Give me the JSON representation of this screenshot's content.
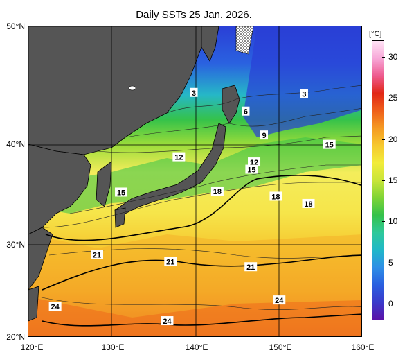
{
  "title": "Daily SSTs 25 Jan. 2026.",
  "unit_label": "[°C]",
  "lat_labels": [
    "50°N",
    "40°N",
    "30°N",
    "20°N"
  ],
  "lon_labels": [
    "120°E",
    "130°E",
    "140°E",
    "150°E",
    "160°E"
  ],
  "colorbar": {
    "ticks": [
      "30",
      "25",
      "20",
      "15",
      "10",
      "5",
      "0"
    ],
    "range": [
      -2,
      32
    ],
    "colors": [
      "#5b12a8",
      "#3a3acb",
      "#2a5fe0",
      "#2e8fe6",
      "#20b8c8",
      "#2ec99a",
      "#35c24a",
      "#7fd436",
      "#c9e53a",
      "#f2ec3a",
      "#f6c82e",
      "#f59a23",
      "#ef5f1a",
      "#e12716",
      "#ee5a8f",
      "#f7a8d8",
      "#ffe4f6"
    ]
  },
  "contour_labels": [
    {
      "text": "3",
      "lon": 139.8,
      "lat": 43.6
    },
    {
      "text": "3",
      "lon": 153.0,
      "lat": 43.5
    },
    {
      "text": "6",
      "lon": 146.0,
      "lat": 41.8
    },
    {
      "text": "9",
      "lon": 148.2,
      "lat": 39.5
    },
    {
      "text": "12",
      "lon": 138.0,
      "lat": 37.4
    },
    {
      "text": "12",
      "lon": 147.0,
      "lat": 36.9
    },
    {
      "text": "15",
      "lon": 146.7,
      "lat": 36.2
    },
    {
      "text": "15",
      "lon": 156.0,
      "lat": 38.6
    },
    {
      "text": "15",
      "lon": 131.1,
      "lat": 34.0
    },
    {
      "text": "18",
      "lon": 142.6,
      "lat": 34.1
    },
    {
      "text": "18",
      "lon": 149.6,
      "lat": 33.6
    },
    {
      "text": "18",
      "lon": 153.5,
      "lat": 32.9
    },
    {
      "text": "21",
      "lon": 128.2,
      "lat": 28.0
    },
    {
      "text": "21",
      "lon": 137.0,
      "lat": 27.3
    },
    {
      "text": "21",
      "lon": 146.6,
      "lat": 26.8
    },
    {
      "text": "24",
      "lon": 123.2,
      "lat": 23.0
    },
    {
      "text": "24",
      "lon": 136.6,
      "lat": 21.6
    },
    {
      "text": "24",
      "lon": 150.0,
      "lat": 23.6
    }
  ]
}
